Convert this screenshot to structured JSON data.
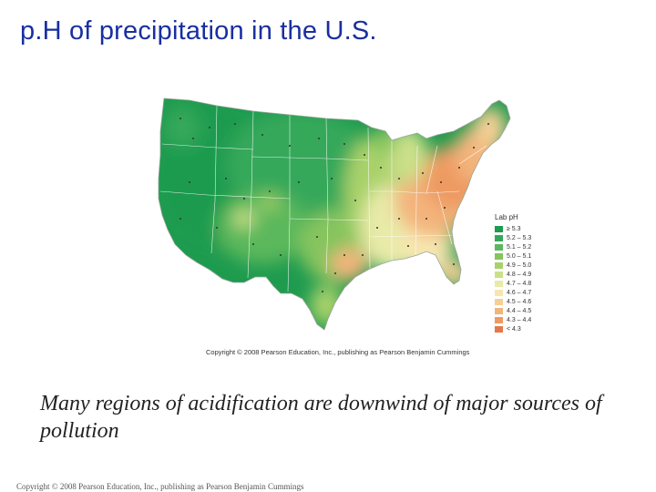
{
  "slide": {
    "title": "p.H of precipitation in the U.S.",
    "caption": "Many regions of acidification are downwind of major sources of pollution",
    "footer": "Copyright © 2008 Pearson Education, Inc., publishing as Pearson Benjamin Cummings"
  },
  "map": {
    "copyright": "Copyright © 2008 Pearson Education, Inc., publishing as Pearson Benjamin Cummings",
    "legend": {
      "title": "Lab pH",
      "items": [
        {
          "label": "≥ 5.3",
          "color": "#1e9b4f"
        },
        {
          "label": "5.2 – 5.3",
          "color": "#34a85a"
        },
        {
          "label": "5.1 – 5.2",
          "color": "#5bb85c"
        },
        {
          "label": "5.0 – 5.1",
          "color": "#86c45e"
        },
        {
          "label": "4.9 – 5.0",
          "color": "#a9d16a"
        },
        {
          "label": "4.8 – 4.9",
          "color": "#cbe08a"
        },
        {
          "label": "4.7 – 4.8",
          "color": "#e8eaa8"
        },
        {
          "label": "4.6 – 4.7",
          "color": "#f6e6b0"
        },
        {
          "label": "4.5 – 4.6",
          "color": "#f6cf95"
        },
        {
          "label": "4.4 – 4.5",
          "color": "#f3b47b"
        },
        {
          "label": "4.3 – 4.4",
          "color": "#ee9a62"
        },
        {
          "label": "< 4.3",
          "color": "#e5784a"
        }
      ]
    }
  }
}
